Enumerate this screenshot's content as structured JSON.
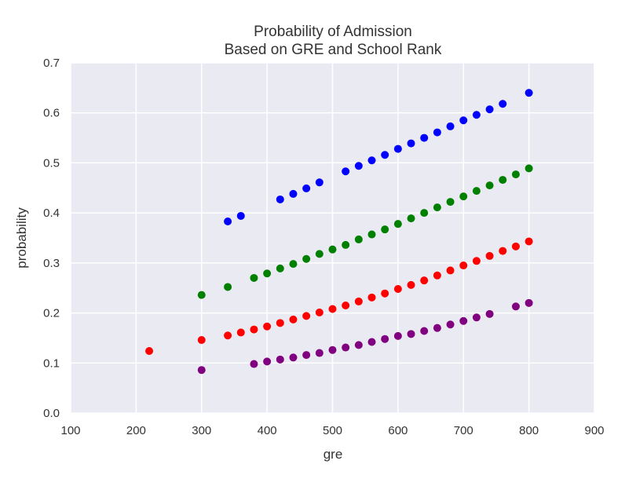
{
  "chart_data": {
    "type": "scatter",
    "title": "Probability of Admission",
    "subtitle": "Based on GRE and School Rank",
    "xlabel": "gre",
    "ylabel": "probability",
    "xlim": [
      100,
      900
    ],
    "ylim": [
      0.0,
      0.7
    ],
    "x_ticks": [
      "100",
      "200",
      "300",
      "400",
      "500",
      "600",
      "700",
      "800",
      "900"
    ],
    "y_ticks": [
      "0.0",
      "0.1",
      "0.2",
      "0.3",
      "0.4",
      "0.5",
      "0.6",
      "0.7"
    ],
    "grid": true,
    "legend": "none",
    "series": [
      {
        "color": "#0000ff",
        "points": [
          [
            340,
            0.383
          ],
          [
            360,
            0.394
          ],
          [
            420,
            0.427
          ],
          [
            440,
            0.438
          ],
          [
            460,
            0.449
          ],
          [
            480,
            0.461
          ],
          [
            520,
            0.483
          ],
          [
            540,
            0.494
          ],
          [
            560,
            0.505
          ],
          [
            580,
            0.516
          ],
          [
            600,
            0.528
          ],
          [
            620,
            0.539
          ],
          [
            640,
            0.55
          ],
          [
            660,
            0.561
          ],
          [
            680,
            0.573
          ],
          [
            700,
            0.585
          ],
          [
            720,
            0.596
          ],
          [
            740,
            0.607
          ],
          [
            760,
            0.618
          ],
          [
            800,
            0.64
          ]
        ]
      },
      {
        "color": "#008000",
        "points": [
          [
            300,
            0.236
          ],
          [
            340,
            0.252
          ],
          [
            380,
            0.27
          ],
          [
            400,
            0.279
          ],
          [
            420,
            0.289
          ],
          [
            440,
            0.298
          ],
          [
            460,
            0.308
          ],
          [
            480,
            0.318
          ],
          [
            500,
            0.327
          ],
          [
            520,
            0.336
          ],
          [
            540,
            0.347
          ],
          [
            560,
            0.357
          ],
          [
            580,
            0.367
          ],
          [
            600,
            0.378
          ],
          [
            620,
            0.389
          ],
          [
            640,
            0.4
          ],
          [
            660,
            0.411
          ],
          [
            680,
            0.422
          ],
          [
            700,
            0.433
          ],
          [
            720,
            0.444
          ],
          [
            740,
            0.455
          ],
          [
            760,
            0.466
          ],
          [
            780,
            0.477
          ],
          [
            800,
            0.489
          ]
        ]
      },
      {
        "color": "#ff0000",
        "points": [
          [
            220,
            0.124
          ],
          [
            300,
            0.146
          ],
          [
            340,
            0.155
          ],
          [
            360,
            0.161
          ],
          [
            380,
            0.167
          ],
          [
            400,
            0.173
          ],
          [
            420,
            0.18
          ],
          [
            440,
            0.187
          ],
          [
            460,
            0.194
          ],
          [
            480,
            0.201
          ],
          [
            500,
            0.208
          ],
          [
            520,
            0.215
          ],
          [
            540,
            0.223
          ],
          [
            560,
            0.231
          ],
          [
            580,
            0.239
          ],
          [
            600,
            0.248
          ],
          [
            620,
            0.256
          ],
          [
            640,
            0.265
          ],
          [
            660,
            0.275
          ],
          [
            680,
            0.285
          ],
          [
            700,
            0.295
          ],
          [
            720,
            0.304
          ],
          [
            740,
            0.314
          ],
          [
            760,
            0.324
          ],
          [
            780,
            0.333
          ],
          [
            800,
            0.343
          ]
        ]
      },
      {
        "color": "#800080",
        "points": [
          [
            300,
            0.086
          ],
          [
            380,
            0.098
          ],
          [
            400,
            0.103
          ],
          [
            420,
            0.107
          ],
          [
            440,
            0.111
          ],
          [
            460,
            0.116
          ],
          [
            480,
            0.12
          ],
          [
            500,
            0.126
          ],
          [
            520,
            0.131
          ],
          [
            540,
            0.136
          ],
          [
            560,
            0.142
          ],
          [
            580,
            0.148
          ],
          [
            600,
            0.154
          ],
          [
            620,
            0.158
          ],
          [
            640,
            0.164
          ],
          [
            660,
            0.17
          ],
          [
            680,
            0.177
          ],
          [
            700,
            0.184
          ],
          [
            720,
            0.191
          ],
          [
            740,
            0.198
          ],
          [
            780,
            0.213
          ],
          [
            800,
            0.22
          ]
        ]
      }
    ]
  }
}
